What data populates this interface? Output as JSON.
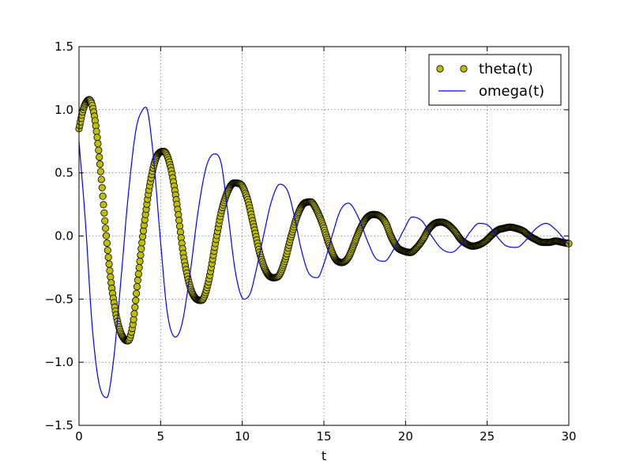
{
  "chart_data": {
    "type": "line",
    "title": "",
    "xlabel": "t",
    "ylabel": "",
    "xlim": [
      0,
      30
    ],
    "ylim": [
      -1.5,
      1.5
    ],
    "xticks": [
      0,
      5,
      10,
      15,
      20,
      25,
      30
    ],
    "yticks": [
      -1.5,
      -1.0,
      -0.5,
      0.0,
      0.5,
      1.0,
      1.5
    ],
    "xtick_labels": [
      "0",
      "5",
      "10",
      "15",
      "20",
      "25",
      "30"
    ],
    "ytick_labels": [
      "−1.5",
      "−1.0",
      "−0.5",
      "0.0",
      "0.5",
      "1.0",
      "1.5"
    ],
    "grid": true,
    "legend_position": "upper right",
    "series": [
      {
        "name": "theta(t)",
        "style": "markers",
        "color": "#bfbf00",
        "edge_color": "#000000",
        "x": [
          0,
          0.25,
          0.5,
          0.62,
          0.8,
          1.0,
          1.3,
          1.6,
          2.0,
          2.4,
          2.8,
          3.0,
          3.3,
          3.6,
          4.0,
          4.4,
          4.8,
          5.2,
          5.6,
          6.0,
          6.4,
          6.8,
          7.2,
          7.5,
          7.9,
          8.3,
          8.7,
          9.1,
          9.5,
          9.9,
          10.3,
          10.7,
          11.1,
          11.5,
          11.9,
          12.2,
          12.6,
          13.0,
          13.4,
          13.8,
          14.2,
          14.5,
          14.9,
          15.3,
          15.7,
          16.1,
          16.5,
          16.8,
          17.2,
          17.6,
          18.0,
          18.4,
          18.8,
          19.1,
          19.5,
          19.9,
          20.3,
          20.7,
          21.1,
          21.4,
          21.8,
          22.2,
          22.6,
          23.0,
          23.4,
          23.7,
          24.1,
          24.5,
          24.9,
          25.3,
          25.7,
          26.0,
          26.4,
          26.8,
          27.2,
          27.6,
          28.0,
          28.4,
          28.8,
          29.2,
          29.6,
          30.0
        ],
        "values": [
          0.85,
          1.0,
          1.07,
          1.08,
          1.04,
          0.9,
          0.55,
          0.1,
          -0.4,
          -0.7,
          -0.82,
          -0.83,
          -0.7,
          -0.35,
          0.1,
          0.45,
          0.64,
          0.67,
          0.55,
          0.25,
          -0.15,
          -0.4,
          -0.5,
          -0.51,
          -0.38,
          -0.1,
          0.18,
          0.35,
          0.42,
          0.41,
          0.3,
          0.08,
          -0.15,
          -0.29,
          -0.33,
          -0.32,
          -0.2,
          0.0,
          0.17,
          0.26,
          0.27,
          0.22,
          0.1,
          -0.06,
          -0.18,
          -0.21,
          -0.17,
          -0.08,
          0.05,
          0.14,
          0.17,
          0.16,
          0.1,
          0.0,
          -0.09,
          -0.12,
          -0.13,
          -0.09,
          -0.02,
          0.05,
          0.1,
          0.11,
          0.09,
          0.04,
          -0.03,
          -0.06,
          -0.08,
          -0.07,
          -0.04,
          0.01,
          0.05,
          0.06,
          0.07,
          0.06,
          0.04,
          0.0,
          -0.03,
          -0.05,
          -0.05,
          -0.04,
          -0.05,
          -0.06
        ]
      },
      {
        "name": "omega(t)",
        "style": "line",
        "color": "#0000ff",
        "x": [
          0,
          0.4,
          0.8,
          1.2,
          1.7,
          2.1,
          2.6,
          3.0,
          3.5,
          3.9,
          4.1,
          4.5,
          5.0,
          5.4,
          5.9,
          6.3,
          6.8,
          7.3,
          7.8,
          8.3,
          8.7,
          9.1,
          9.6,
          10.1,
          10.5,
          10.8,
          11.3,
          11.8,
          12.3,
          12.8,
          13.2,
          13.6,
          14.1,
          14.6,
          15.0,
          15.5,
          16.0,
          16.5,
          17.1,
          17.7,
          18.2,
          18.7,
          19.3,
          19.9,
          20.4,
          21.0,
          21.6,
          22.2,
          22.8,
          23.4,
          24.0,
          24.5,
          25.1,
          25.7,
          26.2,
          26.8,
          27.4,
          28.0,
          28.6,
          29.2,
          30.0
        ],
        "values": [
          0.75,
          0.1,
          -0.7,
          -1.15,
          -1.28,
          -1.0,
          -0.3,
          0.3,
          0.85,
          1.0,
          1.02,
          0.7,
          -0.05,
          -0.6,
          -0.8,
          -0.7,
          -0.3,
          0.2,
          0.55,
          0.65,
          0.58,
          0.2,
          -0.3,
          -0.5,
          -0.45,
          -0.3,
          0.0,
          0.28,
          0.41,
          0.35,
          0.15,
          -0.1,
          -0.3,
          -0.33,
          -0.22,
          0.0,
          0.2,
          0.26,
          0.15,
          -0.05,
          -0.18,
          -0.2,
          -0.1,
          0.05,
          0.15,
          0.12,
          0.0,
          -0.1,
          -0.13,
          -0.07,
          0.04,
          0.1,
          0.08,
          -0.02,
          -0.08,
          -0.09,
          -0.03,
          0.06,
          0.1,
          0.05,
          -0.07
        ]
      }
    ]
  }
}
